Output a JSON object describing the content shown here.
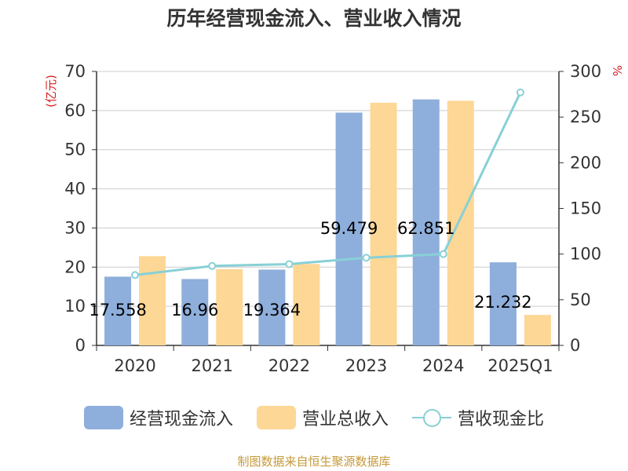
{
  "chart_data": {
    "type": "bar",
    "title": "历年经营现金流入、营业收入情况",
    "categories": [
      "2020",
      "2021",
      "2022",
      "2023",
      "2024",
      "2025Q1"
    ],
    "ylabel": "(亿元)",
    "y2label": "",
    "y2unit": "%",
    "ylim": [
      0,
      70
    ],
    "yticks": [
      0,
      10,
      20,
      30,
      40,
      50,
      60,
      70
    ],
    "y2lim": [
      0,
      300
    ],
    "y2ticks": [
      0,
      50,
      100,
      150,
      200,
      250,
      300
    ],
    "grid": true,
    "legend_position": "bottom",
    "series": [
      {
        "name": "经营现金流入",
        "type": "bar",
        "axis": "left",
        "color": "#8eaedb",
        "values": [
          17.558,
          16.96,
          19.364,
          59.479,
          62.851,
          21.232
        ],
        "data_labels": [
          "17.558",
          "16.96",
          "19.364",
          "59.479",
          "62.851",
          "21.232"
        ]
      },
      {
        "name": "营业总收入",
        "type": "bar",
        "axis": "left",
        "color": "#fdd795",
        "values": [
          22.8,
          19.5,
          20.8,
          62.0,
          62.5,
          7.8
        ]
      },
      {
        "name": "营收现金比",
        "type": "line",
        "axis": "right",
        "color": "#88d0d6",
        "values": [
          77,
          87,
          89,
          96,
          100,
          277
        ]
      }
    ]
  },
  "source": "制图数据来自恒生聚源数据库",
  "colors": {
    "axis": "#333333",
    "grid": "#cccccc",
    "ylabel": "#d42020",
    "source": "#c59a3a"
  }
}
